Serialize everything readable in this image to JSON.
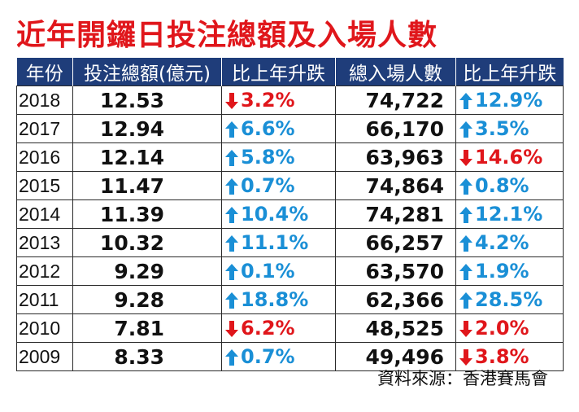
{
  "title": "近年開鑼日投注總額及入場人數",
  "source": "資料來源：香港賽馬會",
  "colors": {
    "header_bg": "#1f3d7a",
    "title": "#e0161b",
    "up": "#1a8fd6",
    "down": "#e0161b"
  },
  "icons": {
    "up": "up-arrow-icon",
    "down": "down-arrow-icon"
  },
  "chart_data": {
    "type": "table",
    "title": "近年開鑼日投注總額及入場人數",
    "columns": [
      "年份",
      "投注總額(億元)",
      "比上年升跌",
      "總入場人數",
      "比上年升跌"
    ],
    "rows": [
      {
        "year": "2018",
        "betting": "12.53",
        "betting_change": "3.2%",
        "betting_dir": "down",
        "attendance": "74,722",
        "attendance_change": "12.9%",
        "attendance_dir": "up"
      },
      {
        "year": "2017",
        "betting": "12.94",
        "betting_change": "6.6%",
        "betting_dir": "up",
        "attendance": "66,170",
        "attendance_change": "3.5%",
        "attendance_dir": "up"
      },
      {
        "year": "2016",
        "betting": "12.14",
        "betting_change": "5.8%",
        "betting_dir": "up",
        "attendance": "63,963",
        "attendance_change": "14.6%",
        "attendance_dir": "down"
      },
      {
        "year": "2015",
        "betting": "11.47",
        "betting_change": "0.7%",
        "betting_dir": "up",
        "attendance": "74,864",
        "attendance_change": "0.8%",
        "attendance_dir": "up"
      },
      {
        "year": "2014",
        "betting": "11.39",
        "betting_change": "10.4%",
        "betting_dir": "up",
        "attendance": "74,281",
        "attendance_change": "12.1%",
        "attendance_dir": "up"
      },
      {
        "year": "2013",
        "betting": "10.32",
        "betting_change": "11.1%",
        "betting_dir": "up",
        "attendance": "66,257",
        "attendance_change": "4.2%",
        "attendance_dir": "up"
      },
      {
        "year": "2012",
        "betting": "9.29",
        "betting_change": "0.1%",
        "betting_dir": "up",
        "attendance": "63,570",
        "attendance_change": "1.9%",
        "attendance_dir": "up"
      },
      {
        "year": "2011",
        "betting": "9.28",
        "betting_change": "18.8%",
        "betting_dir": "up",
        "attendance": "62,366",
        "attendance_change": "28.5%",
        "attendance_dir": "up"
      },
      {
        "year": "2010",
        "betting": "7.81",
        "betting_change": "6.2%",
        "betting_dir": "down",
        "attendance": "48,525",
        "attendance_change": "2.0%",
        "attendance_dir": "down"
      },
      {
        "year": "2009",
        "betting": "8.33",
        "betting_change": "0.7%",
        "betting_dir": "up",
        "attendance": "49,496",
        "attendance_change": "3.8%",
        "attendance_dir": "down"
      }
    ]
  }
}
